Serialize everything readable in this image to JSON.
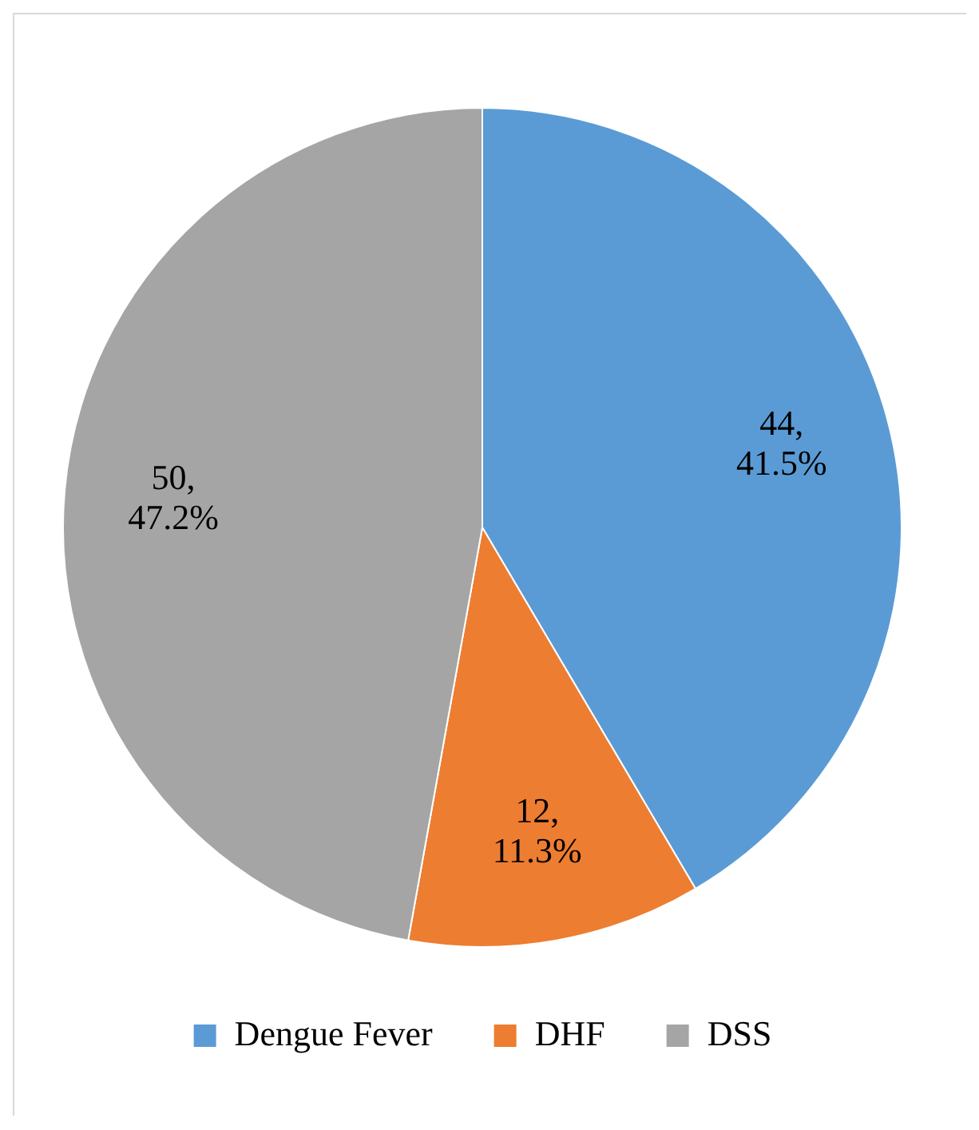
{
  "chart_data": {
    "type": "pie",
    "categories": [
      "Dengue Fever",
      "DHF",
      "DSS"
    ],
    "values": [
      44,
      12,
      50
    ],
    "colors": [
      "#5b9bd5",
      "#ed7d31",
      "#a5a5a5"
    ],
    "value_labels": [
      "44, 41.5%",
      "12, 11.3%",
      "50, 47.2%"
    ],
    "legend": "bottom"
  }
}
